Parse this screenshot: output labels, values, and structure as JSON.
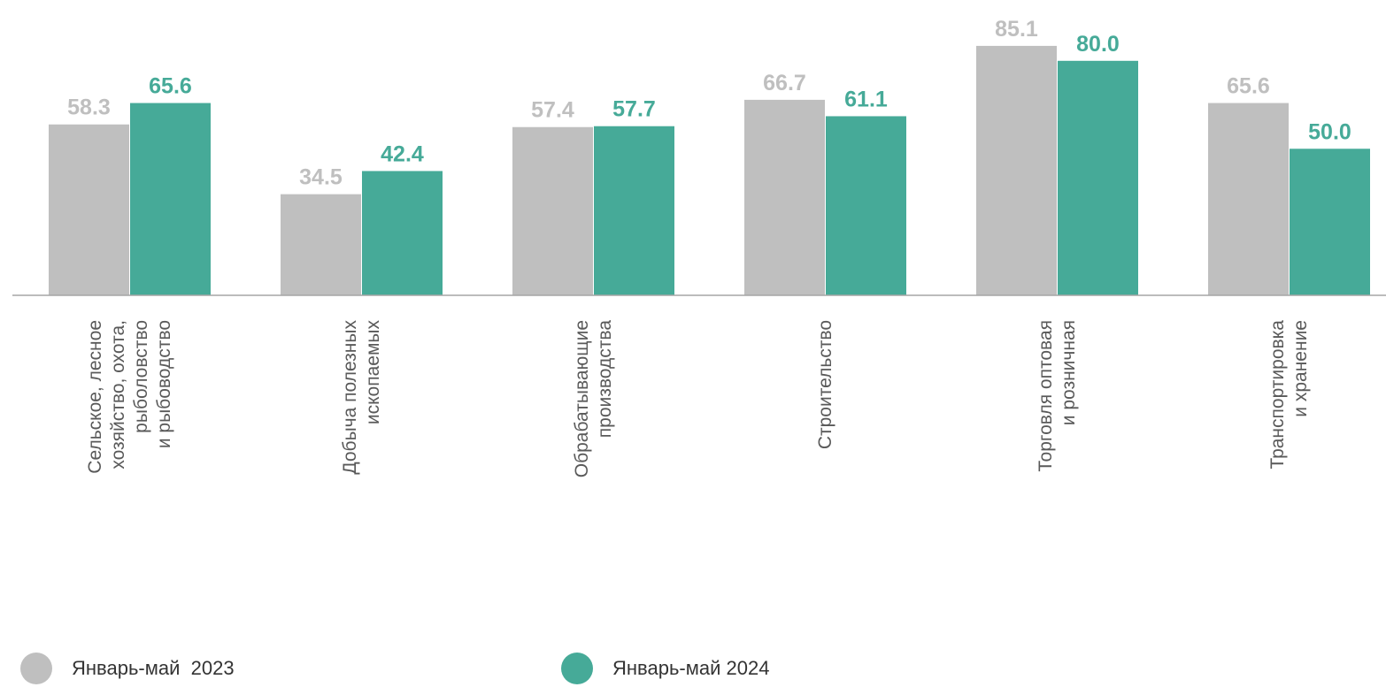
{
  "chart_data": {
    "type": "bar",
    "categories": [
      [
        "Сельское, лесное",
        "хозяйство, охота,",
        "рыболовство",
        "и рыбоводство"
      ],
      [
        "Добыча полезных",
        "ископаемых"
      ],
      [
        "Обрабатывающие",
        "производства"
      ],
      [
        "Строительство"
      ],
      [
        "Торговля оптовая",
        "и розничная"
      ],
      [
        "Транспортировка",
        "и хранение"
      ]
    ],
    "series": [
      {
        "name": "Январь-май  2023",
        "color": "#bfbfbf",
        "values": [
          58.3,
          34.5,
          57.4,
          66.7,
          85.1,
          65.6
        ],
        "labels": [
          "58.3",
          "34.5",
          "57.4",
          "66.7",
          "85.1",
          "65.6"
        ]
      },
      {
        "name": "Январь-май 2024",
        "color": "#46aa98",
        "values": [
          65.6,
          42.4,
          57.7,
          61.1,
          80.0,
          50.0
        ],
        "labels": [
          "65.6",
          "42.4",
          "57.7",
          "61.1",
          "80.0",
          "50.0"
        ]
      }
    ],
    "ylim": [
      0,
      100
    ],
    "grid": false,
    "legend_position": "bottom",
    "colors": {
      "axis": "#a6a6a6",
      "category_text": "#595959"
    }
  }
}
